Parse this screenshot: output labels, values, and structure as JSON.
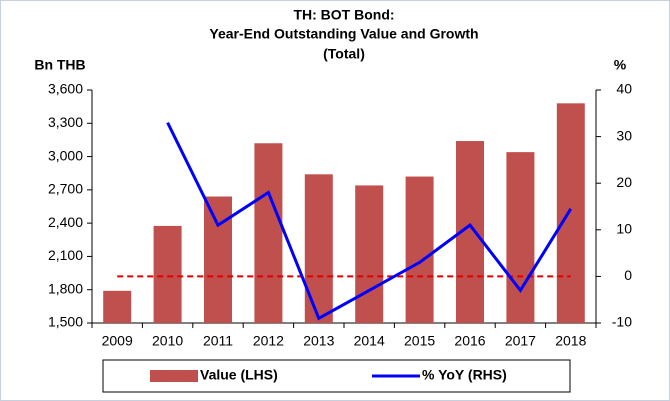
{
  "chart_data": {
    "type": "bar_line",
    "title": [
      "TH: BOT Bond:",
      "Year-End Outstanding Value and Growth",
      "(Total)"
    ],
    "y_label": "Bn THB",
    "y2_label": "%",
    "categories": [
      "2009",
      "2010",
      "2011",
      "2012",
      "2013",
      "2014",
      "2015",
      "2016",
      "2017",
      "2018"
    ],
    "series": [
      {
        "name": "Value (LHS)",
        "type": "bar",
        "color": "#c0504d",
        "values": [
          1790,
          2375,
          2640,
          3120,
          2840,
          2740,
          2820,
          3140,
          3040,
          3480
        ]
      },
      {
        "name": "% YoY (RHS)",
        "type": "line",
        "axis": "y2",
        "color": "#0000ff",
        "values": [
          null,
          33,
          11,
          18,
          -9,
          -3,
          3,
          11,
          -3,
          14.5
        ]
      }
    ],
    "ylim": [
      1500,
      3600
    ],
    "yticks": [
      {
        "value": 1500,
        "label": "1,500"
      },
      {
        "value": 1800,
        "label": "1,800"
      },
      {
        "value": 2100,
        "label": "2,100"
      },
      {
        "value": 2400,
        "label": "2,400"
      },
      {
        "value": 2700,
        "label": "2,700"
      },
      {
        "value": 3000,
        "label": "3,000"
      },
      {
        "value": 3300,
        "label": "3,300"
      },
      {
        "value": 3600,
        "label": "3,600"
      }
    ],
    "y2lim": [
      -10,
      40
    ],
    "y2ticks": [
      -10,
      0,
      10,
      20,
      30,
      40
    ],
    "reference_line": {
      "value": 0,
      "axis": "y2",
      "color": "#e00000"
    },
    "legend": "bottom"
  }
}
